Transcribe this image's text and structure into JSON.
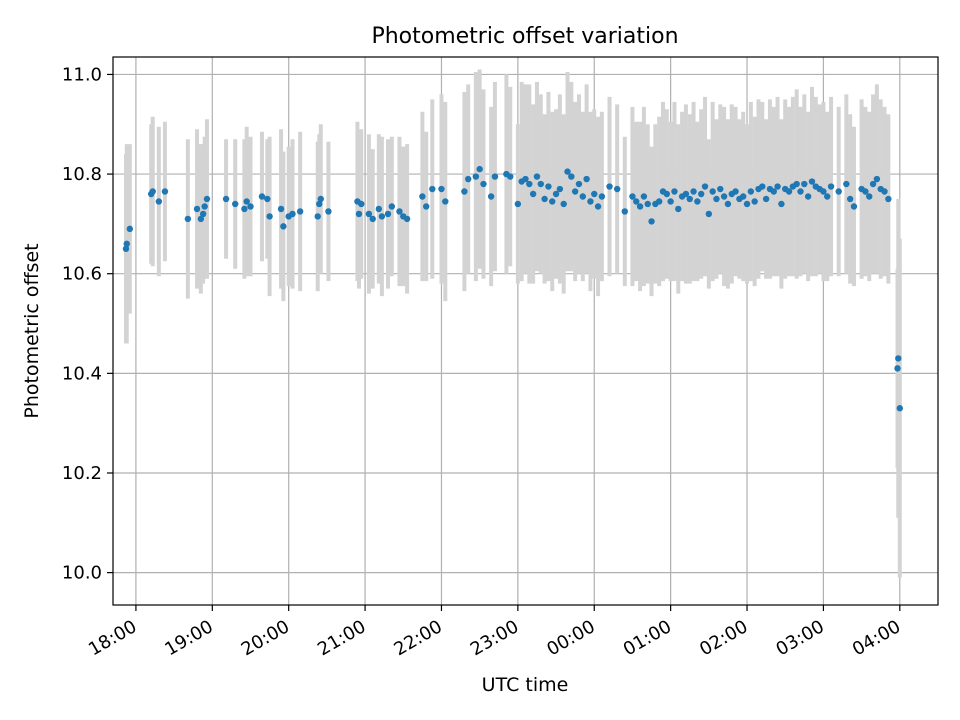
{
  "chart_data": {
    "type": "scatter",
    "title": "Photometric offset variation",
    "xlabel": "UTC time",
    "ylabel": "Photometric offset",
    "xlim": [
      17.7,
      28.5
    ],
    "ylim": [
      9.935,
      11.035
    ],
    "grid": true,
    "x_ticks": [
      {
        "value": 18,
        "label": "18:00"
      },
      {
        "value": 19,
        "label": "19:00"
      },
      {
        "value": 20,
        "label": "20:00"
      },
      {
        "value": 21,
        "label": "21:00"
      },
      {
        "value": 22,
        "label": "22:00"
      },
      {
        "value": 23,
        "label": "23:00"
      },
      {
        "value": 24,
        "label": "00:00"
      },
      {
        "value": 25,
        "label": "01:00"
      },
      {
        "value": 26,
        "label": "02:00"
      },
      {
        "value": 27,
        "label": "03:00"
      },
      {
        "value": 28,
        "label": "04:00"
      }
    ],
    "y_ticks": [
      {
        "value": 10.0,
        "label": "10.0"
      },
      {
        "value": 10.2,
        "label": "10.2"
      },
      {
        "value": 10.4,
        "label": "10.4"
      },
      {
        "value": 10.6,
        "label": "10.6"
      },
      {
        "value": 10.8,
        "label": "10.8"
      },
      {
        "value": 11.0,
        "label": "11.0"
      }
    ],
    "colors": {
      "points": "#1f77b4",
      "errorbars": "#d3d3d3",
      "grid": "#b0b0b0"
    },
    "series": [
      {
        "name": "offset",
        "points": [
          [
            17.87,
            10.65,
            0.19
          ],
          [
            17.88,
            10.66,
            0.2
          ],
          [
            17.92,
            10.69,
            0.17
          ],
          [
            18.2,
            10.76,
            0.14
          ],
          [
            18.22,
            10.765,
            0.15
          ],
          [
            18.3,
            10.745,
            0.15
          ],
          [
            18.38,
            10.765,
            0.14
          ],
          [
            18.68,
            10.71,
            0.16
          ],
          [
            18.8,
            10.73,
            0.16
          ],
          [
            18.85,
            10.71,
            0.15
          ],
          [
            18.88,
            10.72,
            0.14
          ],
          [
            18.9,
            10.735,
            0.14
          ],
          [
            18.93,
            10.75,
            0.16
          ],
          [
            19.18,
            10.75,
            0.12
          ],
          [
            19.3,
            10.74,
            0.13
          ],
          [
            19.42,
            10.73,
            0.14
          ],
          [
            19.45,
            10.745,
            0.15
          ],
          [
            19.5,
            10.735,
            0.14
          ],
          [
            19.65,
            10.755,
            0.13
          ],
          [
            19.72,
            10.75,
            0.12
          ],
          [
            19.75,
            10.715,
            0.16
          ],
          [
            19.9,
            10.73,
            0.16
          ],
          [
            19.93,
            10.695,
            0.15
          ],
          [
            20.0,
            10.715,
            0.14
          ],
          [
            20.05,
            10.72,
            0.15
          ],
          [
            20.15,
            10.725,
            0.16
          ],
          [
            20.38,
            10.715,
            0.15
          ],
          [
            20.4,
            10.74,
            0.14
          ],
          [
            20.42,
            10.75,
            0.15
          ],
          [
            20.52,
            10.725,
            0.14
          ],
          [
            20.9,
            10.745,
            0.16
          ],
          [
            20.92,
            10.72,
            0.15
          ],
          [
            20.95,
            10.74,
            0.15
          ],
          [
            21.05,
            10.72,
            0.16
          ],
          [
            21.1,
            10.71,
            0.14
          ],
          [
            21.18,
            10.73,
            0.15
          ],
          [
            21.22,
            10.715,
            0.16
          ],
          [
            21.3,
            10.72,
            0.15
          ],
          [
            21.35,
            10.735,
            0.14
          ],
          [
            21.45,
            10.725,
            0.15
          ],
          [
            21.5,
            10.715,
            0.14
          ],
          [
            21.55,
            10.71,
            0.15
          ],
          [
            21.75,
            10.755,
            0.17
          ],
          [
            21.8,
            10.735,
            0.15
          ],
          [
            21.88,
            10.77,
            0.18
          ],
          [
            22.0,
            10.77,
            0.19
          ],
          [
            22.05,
            10.745,
            0.2
          ],
          [
            22.3,
            10.765,
            0.2
          ],
          [
            22.35,
            10.79,
            0.19
          ],
          [
            22.45,
            10.795,
            0.21
          ],
          [
            22.5,
            10.81,
            0.2
          ],
          [
            22.55,
            10.78,
            0.19
          ],
          [
            22.65,
            10.755,
            0.18
          ],
          [
            22.7,
            10.795,
            0.19
          ],
          [
            22.85,
            10.8,
            0.2
          ],
          [
            22.9,
            10.795,
            0.18
          ],
          [
            23.0,
            10.74,
            0.16
          ],
          [
            23.05,
            10.785,
            0.2
          ],
          [
            23.1,
            10.79,
            0.19
          ],
          [
            23.15,
            10.78,
            0.2
          ],
          [
            23.2,
            10.76,
            0.18
          ],
          [
            23.25,
            10.795,
            0.19
          ],
          [
            23.3,
            10.78,
            0.18
          ],
          [
            23.35,
            10.75,
            0.17
          ],
          [
            23.4,
            10.775,
            0.19
          ],
          [
            23.45,
            10.745,
            0.18
          ],
          [
            23.5,
            10.76,
            0.17
          ],
          [
            23.55,
            10.77,
            0.19
          ],
          [
            23.6,
            10.74,
            0.18
          ],
          [
            23.65,
            10.805,
            0.2
          ],
          [
            23.7,
            10.795,
            0.19
          ],
          [
            23.75,
            10.765,
            0.18
          ],
          [
            23.8,
            10.78,
            0.18
          ],
          [
            23.85,
            10.755,
            0.17
          ],
          [
            23.9,
            10.79,
            0.19
          ],
          [
            23.95,
            10.745,
            0.18
          ],
          [
            24.0,
            10.76,
            0.17
          ],
          [
            24.05,
            10.735,
            0.18
          ],
          [
            24.1,
            10.755,
            0.17
          ],
          [
            24.2,
            10.775,
            0.18
          ],
          [
            24.3,
            10.77,
            0.17
          ],
          [
            24.4,
            10.725,
            0.15
          ],
          [
            24.5,
            10.755,
            0.18
          ],
          [
            24.55,
            10.745,
            0.16
          ],
          [
            24.6,
            10.735,
            0.17
          ],
          [
            24.65,
            10.755,
            0.18
          ],
          [
            24.7,
            10.74,
            0.16
          ],
          [
            24.75,
            10.705,
            0.15
          ],
          [
            24.8,
            10.74,
            0.16
          ],
          [
            24.85,
            10.745,
            0.17
          ],
          [
            24.9,
            10.765,
            0.18
          ],
          [
            24.95,
            10.76,
            0.17
          ],
          [
            25.0,
            10.745,
            0.16
          ],
          [
            25.05,
            10.765,
            0.18
          ],
          [
            25.1,
            10.73,
            0.17
          ],
          [
            25.15,
            10.755,
            0.17
          ],
          [
            25.2,
            10.76,
            0.18
          ],
          [
            25.25,
            10.75,
            0.17
          ],
          [
            25.3,
            10.765,
            0.18
          ],
          [
            25.35,
            10.745,
            0.16
          ],
          [
            25.4,
            10.76,
            0.17
          ],
          [
            25.45,
            10.775,
            0.18
          ],
          [
            25.5,
            10.72,
            0.15
          ],
          [
            25.55,
            10.765,
            0.18
          ],
          [
            25.6,
            10.75,
            0.16
          ],
          [
            25.65,
            10.77,
            0.17
          ],
          [
            25.7,
            10.755,
            0.18
          ],
          [
            25.75,
            10.74,
            0.17
          ],
          [
            25.8,
            10.76,
            0.18
          ],
          [
            25.85,
            10.765,
            0.17
          ],
          [
            25.9,
            10.75,
            0.16
          ],
          [
            25.95,
            10.755,
            0.17
          ],
          [
            26.0,
            10.74,
            0.16
          ],
          [
            26.05,
            10.765,
            0.18
          ],
          [
            26.1,
            10.745,
            0.17
          ],
          [
            26.15,
            10.77,
            0.18
          ],
          [
            26.2,
            10.775,
            0.17
          ],
          [
            26.25,
            10.75,
            0.16
          ],
          [
            26.3,
            10.77,
            0.18
          ],
          [
            26.35,
            10.765,
            0.17
          ],
          [
            26.4,
            10.775,
            0.18
          ],
          [
            26.45,
            10.74,
            0.17
          ],
          [
            26.5,
            10.77,
            0.18
          ],
          [
            26.55,
            10.765,
            0.17
          ],
          [
            26.6,
            10.775,
            0.18
          ],
          [
            26.65,
            10.78,
            0.19
          ],
          [
            26.7,
            10.765,
            0.17
          ],
          [
            26.75,
            10.78,
            0.18
          ],
          [
            26.8,
            10.755,
            0.17
          ],
          [
            26.85,
            10.785,
            0.19
          ],
          [
            26.9,
            10.775,
            0.18
          ],
          [
            26.95,
            10.77,
            0.17
          ],
          [
            27.0,
            10.765,
            0.18
          ],
          [
            27.05,
            10.755,
            0.17
          ],
          [
            27.1,
            10.775,
            0.18
          ],
          [
            27.2,
            10.765,
            0.17
          ],
          [
            27.3,
            10.78,
            0.18
          ],
          [
            27.35,
            10.75,
            0.17
          ],
          [
            27.4,
            10.735,
            0.16
          ],
          [
            27.5,
            10.77,
            0.18
          ],
          [
            27.55,
            10.765,
            0.17
          ],
          [
            27.6,
            10.755,
            0.17
          ],
          [
            27.65,
            10.78,
            0.18
          ],
          [
            27.7,
            10.79,
            0.19
          ],
          [
            27.75,
            10.77,
            0.18
          ],
          [
            27.8,
            10.765,
            0.17
          ],
          [
            27.85,
            10.75,
            0.17
          ],
          [
            27.97,
            10.41,
            0.2
          ],
          [
            27.98,
            10.43,
            0.32
          ],
          [
            28.0,
            10.33,
            0.34
          ]
        ]
      }
    ]
  }
}
